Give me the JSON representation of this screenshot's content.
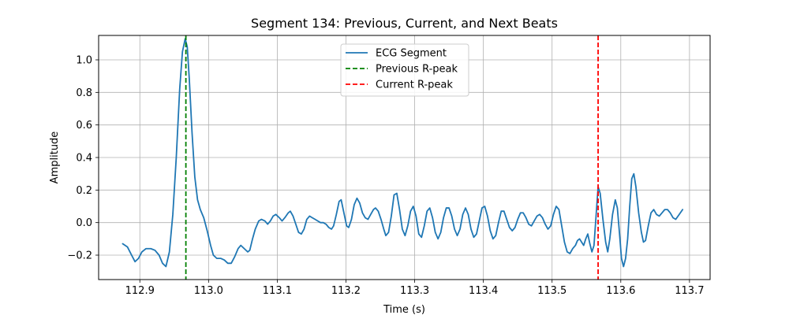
{
  "chart_data": {
    "type": "line",
    "title": "Segment 134: Previous, Current, and Next Beats",
    "xlabel": "Time (s)",
    "ylabel": "Amplitude",
    "xlim": [
      112.84,
      113.73
    ],
    "ylim": [
      -0.35,
      1.15
    ],
    "x_ticks": [
      112.9,
      113.0,
      113.1,
      113.2,
      113.3,
      113.4,
      113.5,
      113.6,
      113.7
    ],
    "x_tick_labels": [
      "112.9",
      "113.0",
      "113.1",
      "113.2",
      "113.3",
      "113.4",
      "113.5",
      "113.6",
      "113.7"
    ],
    "y_ticks": [
      -0.2,
      0.0,
      0.2,
      0.4,
      0.6,
      0.8,
      1.0
    ],
    "y_tick_labels": [
      "−0.2",
      "0.0",
      "0.2",
      "0.4",
      "0.6",
      "0.8",
      "1.0"
    ],
    "grid": true,
    "legend_position": "top-center",
    "series": [
      {
        "name": "ECG Segment",
        "color": "#1f77b4",
        "points": [
          [
            112.875,
            -0.13
          ],
          [
            112.882,
            -0.15
          ],
          [
            112.888,
            -0.2
          ],
          [
            112.893,
            -0.24
          ],
          [
            112.898,
            -0.22
          ],
          [
            112.903,
            -0.18
          ],
          [
            112.909,
            -0.16
          ],
          [
            112.916,
            -0.16
          ],
          [
            112.922,
            -0.17
          ],
          [
            112.928,
            -0.2
          ],
          [
            112.933,
            -0.25
          ],
          [
            112.938,
            -0.27
          ],
          [
            112.943,
            -0.18
          ],
          [
            112.948,
            0.05
          ],
          [
            112.953,
            0.4
          ],
          [
            112.958,
            0.82
          ],
          [
            112.962,
            1.05
          ],
          [
            112.966,
            1.13
          ],
          [
            112.969,
            1.08
          ],
          [
            112.972,
            0.88
          ],
          [
            112.976,
            0.55
          ],
          [
            112.98,
            0.28
          ],
          [
            112.984,
            0.14
          ],
          [
            112.988,
            0.08
          ],
          [
            112.993,
            0.03
          ],
          [
            112.998,
            -0.05
          ],
          [
            113.003,
            -0.14
          ],
          [
            113.007,
            -0.2
          ],
          [
            113.012,
            -0.22
          ],
          [
            113.018,
            -0.22
          ],
          [
            113.023,
            -0.23
          ],
          [
            113.028,
            -0.25
          ],
          [
            113.033,
            -0.25
          ],
          [
            113.038,
            -0.21
          ],
          [
            113.043,
            -0.16
          ],
          [
            113.047,
            -0.14
          ],
          [
            113.052,
            -0.16
          ],
          [
            113.057,
            -0.18
          ],
          [
            113.06,
            -0.17
          ],
          [
            113.064,
            -0.1
          ],
          [
            113.068,
            -0.04
          ],
          [
            113.073,
            0.01
          ],
          [
            113.077,
            0.02
          ],
          [
            113.082,
            0.01
          ],
          [
            113.086,
            -0.01
          ],
          [
            113.09,
            0.01
          ],
          [
            113.094,
            0.04
          ],
          [
            113.098,
            0.05
          ],
          [
            113.103,
            0.03
          ],
          [
            113.107,
            0.01
          ],
          [
            113.111,
            0.03
          ],
          [
            113.116,
            0.06
          ],
          [
            113.119,
            0.07
          ],
          [
            113.123,
            0.04
          ],
          [
            113.127,
            -0.01
          ],
          [
            113.131,
            -0.06
          ],
          [
            113.135,
            -0.07
          ],
          [
            113.139,
            -0.04
          ],
          [
            113.143,
            0.02
          ],
          [
            113.147,
            0.04
          ],
          [
            113.151,
            0.03
          ],
          [
            113.155,
            0.02
          ],
          [
            113.159,
            0.01
          ],
          [
            113.163,
            0.0
          ],
          [
            113.167,
            0.0
          ],
          [
            113.171,
            -0.01
          ],
          [
            113.175,
            -0.03
          ],
          [
            113.179,
            -0.04
          ],
          [
            113.182,
            -0.02
          ],
          [
            113.186,
            0.05
          ],
          [
            113.19,
            0.13
          ],
          [
            113.193,
            0.14
          ],
          [
            113.197,
            0.06
          ],
          [
            113.201,
            -0.02
          ],
          [
            113.204,
            -0.03
          ],
          [
            113.208,
            0.02
          ],
          [
            113.212,
            0.11
          ],
          [
            113.216,
            0.15
          ],
          [
            113.22,
            0.12
          ],
          [
            113.224,
            0.06
          ],
          [
            113.228,
            0.03
          ],
          [
            113.232,
            0.02
          ],
          [
            113.236,
            0.05
          ],
          [
            113.24,
            0.08
          ],
          [
            113.243,
            0.09
          ],
          [
            113.247,
            0.07
          ],
          [
            113.251,
            0.02
          ],
          [
            113.255,
            -0.04
          ],
          [
            113.258,
            -0.08
          ],
          [
            113.262,
            -0.06
          ],
          [
            113.266,
            0.04
          ],
          [
            113.27,
            0.17
          ],
          [
            113.274,
            0.18
          ],
          [
            113.278,
            0.08
          ],
          [
            113.282,
            -0.04
          ],
          [
            113.286,
            -0.08
          ],
          [
            113.29,
            -0.02
          ],
          [
            113.294,
            0.07
          ],
          [
            113.298,
            0.1
          ],
          [
            113.302,
            0.04
          ],
          [
            113.306,
            -0.07
          ],
          [
            113.31,
            -0.09
          ],
          [
            113.314,
            -0.02
          ],
          [
            113.318,
            0.07
          ],
          [
            113.322,
            0.09
          ],
          [
            113.326,
            0.03
          ],
          [
            113.33,
            -0.06
          ],
          [
            113.334,
            -0.1
          ],
          [
            113.338,
            -0.06
          ],
          [
            113.342,
            0.03
          ],
          [
            113.346,
            0.09
          ],
          [
            113.35,
            0.09
          ],
          [
            113.354,
            0.04
          ],
          [
            113.358,
            -0.04
          ],
          [
            113.362,
            -0.08
          ],
          [
            113.366,
            -0.04
          ],
          [
            113.37,
            0.05
          ],
          [
            113.374,
            0.09
          ],
          [
            113.378,
            0.05
          ],
          [
            113.382,
            -0.04
          ],
          [
            113.386,
            -0.09
          ],
          [
            113.39,
            -0.07
          ],
          [
            113.394,
            0.01
          ],
          [
            113.398,
            0.09
          ],
          [
            113.402,
            0.1
          ],
          [
            113.406,
            0.04
          ],
          [
            113.41,
            -0.05
          ],
          [
            113.414,
            -0.1
          ],
          [
            113.418,
            -0.08
          ],
          [
            113.422,
            0.0
          ],
          [
            113.426,
            0.07
          ],
          [
            113.43,
            0.07
          ],
          [
            113.434,
            0.02
          ],
          [
            113.438,
            -0.03
          ],
          [
            113.442,
            -0.05
          ],
          [
            113.446,
            -0.03
          ],
          [
            113.45,
            0.02
          ],
          [
            113.454,
            0.06
          ],
          [
            113.458,
            0.06
          ],
          [
            113.462,
            0.03
          ],
          [
            113.466,
            -0.01
          ],
          [
            113.47,
            -0.02
          ],
          [
            113.474,
            0.01
          ],
          [
            113.478,
            0.04
          ],
          [
            113.482,
            0.05
          ],
          [
            113.486,
            0.03
          ],
          [
            113.49,
            -0.01
          ],
          [
            113.494,
            -0.04
          ],
          [
            113.498,
            -0.02
          ],
          [
            113.502,
            0.05
          ],
          [
            113.506,
            0.1
          ],
          [
            113.51,
            0.08
          ],
          [
            113.514,
            -0.02
          ],
          [
            113.518,
            -0.12
          ],
          [
            113.522,
            -0.18
          ],
          [
            113.526,
            -0.19
          ],
          [
            113.53,
            -0.16
          ],
          [
            113.534,
            -0.14
          ],
          [
            113.537,
            -0.11
          ],
          [
            113.54,
            -0.1
          ],
          [
            113.543,
            -0.12
          ],
          [
            113.546,
            -0.14
          ],
          [
            113.549,
            -0.1
          ],
          [
            113.552,
            -0.07
          ],
          [
            113.555,
            -0.13
          ],
          [
            113.558,
            -0.18
          ],
          [
            113.561,
            -0.14
          ],
          [
            113.564,
            0.04
          ],
          [
            113.567,
            0.22
          ],
          [
            113.57,
            0.18
          ],
          [
            113.574,
            0.02
          ],
          [
            113.578,
            -0.12
          ],
          [
            113.581,
            -0.18
          ],
          [
            113.584,
            -0.1
          ],
          [
            113.588,
            0.05
          ],
          [
            113.592,
            0.14
          ],
          [
            113.595,
            0.09
          ],
          [
            113.598,
            -0.06
          ],
          [
            113.601,
            -0.22
          ],
          [
            113.604,
            -0.27
          ],
          [
            113.607,
            -0.22
          ],
          [
            113.61,
            -0.1
          ],
          [
            113.613,
            0.1
          ],
          [
            113.616,
            0.27
          ],
          [
            113.619,
            0.3
          ],
          [
            113.622,
            0.22
          ],
          [
            113.626,
            0.06
          ],
          [
            113.63,
            -0.06
          ],
          [
            113.633,
            -0.12
          ],
          [
            113.636,
            -0.11
          ],
          [
            113.64,
            -0.02
          ],
          [
            113.644,
            0.06
          ],
          [
            113.648,
            0.08
          ],
          [
            113.652,
            0.05
          ],
          [
            113.656,
            0.04
          ],
          [
            113.66,
            0.06
          ],
          [
            113.664,
            0.08
          ],
          [
            113.668,
            0.08
          ],
          [
            113.672,
            0.06
          ],
          [
            113.676,
            0.03
          ],
          [
            113.68,
            0.02
          ],
          [
            113.685,
            0.05
          ],
          [
            113.69,
            0.08
          ]
        ]
      }
    ],
    "vlines": [
      {
        "name": "Previous R-peak",
        "x": 112.967,
        "color": "#008000",
        "style": "dashed"
      },
      {
        "name": "Current R-peak",
        "x": 113.567,
        "color": "#ff0000",
        "style": "dashed"
      }
    ]
  }
}
